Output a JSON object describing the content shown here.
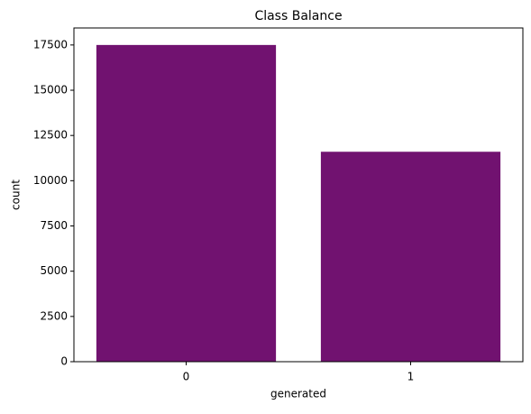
{
  "chart_data": {
    "type": "bar",
    "title": "Class Balance",
    "x_label": "generated",
    "y_label": "count",
    "categories": [
      "0",
      "1"
    ],
    "values": [
      17500,
      11600
    ],
    "color": "#711270",
    "ylim": [
      0,
      18440
    ],
    "yticks": [
      0,
      2500,
      5000,
      7500,
      10000,
      12500,
      15000,
      17500
    ],
    "grid": false
  }
}
